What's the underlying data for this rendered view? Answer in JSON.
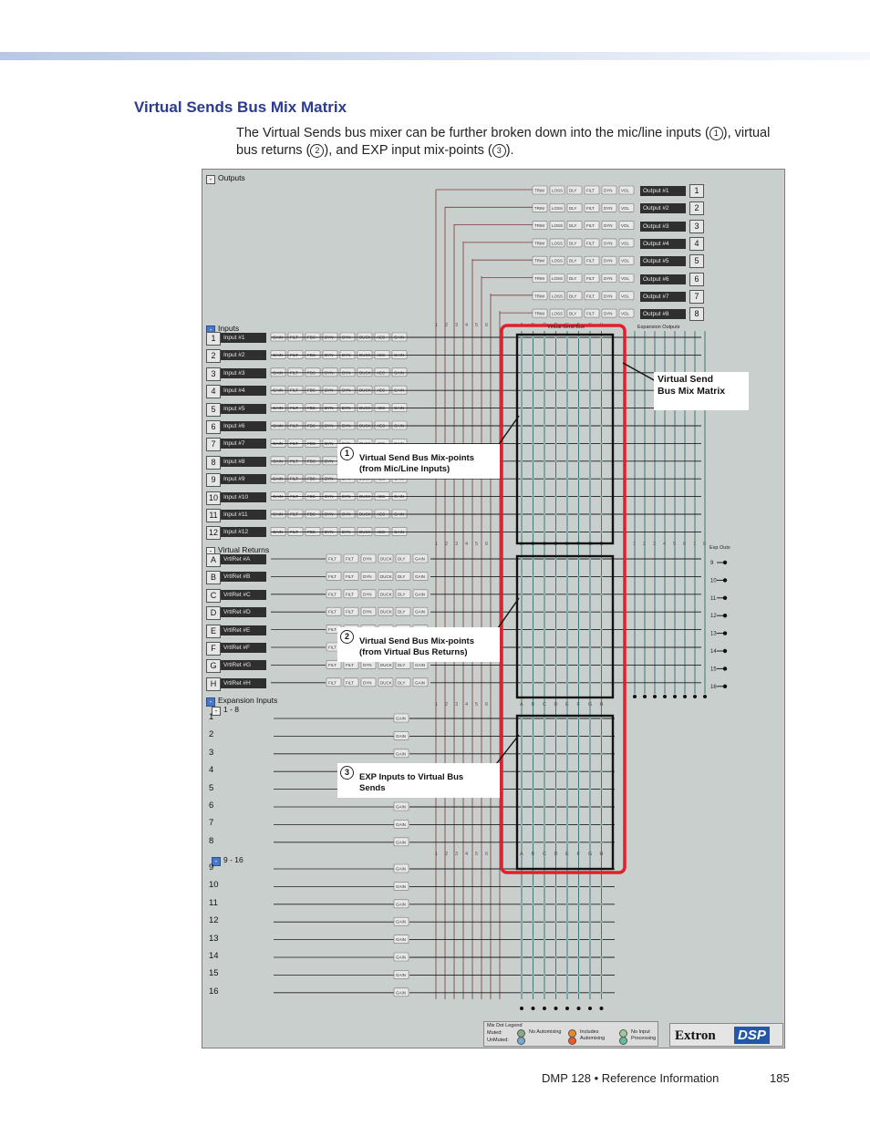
{
  "header": {
    "title": "Virtual Sends Bus Mix Matrix"
  },
  "intro": {
    "part1": "The Virtual Sends bus mixer can be further broken down into the mic/line inputs (",
    "num1": "1",
    "part2": "), virtual bus returns (",
    "num2": "2",
    "part3": "), and EXP input mix-points (",
    "num3": "3",
    "part4": ")."
  },
  "figure": {
    "outputs_label": "Outputs",
    "outputs": [
      {
        "num": "1",
        "name": "Output #1"
      },
      {
        "num": "2",
        "name": "Output #2"
      },
      {
        "num": "3",
        "name": "Output #3"
      },
      {
        "num": "4",
        "name": "Output #4"
      },
      {
        "num": "5",
        "name": "Output #5"
      },
      {
        "num": "6",
        "name": "Output #6"
      },
      {
        "num": "7",
        "name": "Output #7"
      },
      {
        "num": "8",
        "name": "Output #8"
      }
    ],
    "output_blocks": [
      "TRIM",
      "LOSS",
      "DLY",
      "FILT",
      "DYN",
      "VOL"
    ],
    "inputs_label": "Inputs",
    "inputs": [
      {
        "num": "1",
        "name": "Input #1"
      },
      {
        "num": "2",
        "name": "Input #2"
      },
      {
        "num": "3",
        "name": "Input #3"
      },
      {
        "num": "4",
        "name": "Input #4"
      },
      {
        "num": "5",
        "name": "Input #5"
      },
      {
        "num": "6",
        "name": "Input #6"
      },
      {
        "num": "7",
        "name": "Input #7"
      },
      {
        "num": "8",
        "name": "Input #8"
      },
      {
        "num": "9",
        "name": "Input #9"
      },
      {
        "num": "10",
        "name": "Input #10"
      },
      {
        "num": "11",
        "name": "Input #11"
      },
      {
        "num": "12",
        "name": "Input #12"
      }
    ],
    "input_blocks": [
      "GAIN",
      "FILT",
      "FBS",
      "DYN",
      "DYN",
      "DUCK",
      "AEC",
      "GAIN"
    ],
    "virtual_returns_label": "Virtual Returns",
    "virtual_returns": [
      {
        "num": "A",
        "name": "VrtlRet #A"
      },
      {
        "num": "B",
        "name": "VrtlRet #B"
      },
      {
        "num": "C",
        "name": "VrtlRet #C"
      },
      {
        "num": "D",
        "name": "VrtlRet #D"
      },
      {
        "num": "E",
        "name": "VrtlRet #E"
      },
      {
        "num": "F",
        "name": "VrtlRet #F"
      },
      {
        "num": "G",
        "name": "VrtlRet #G"
      },
      {
        "num": "H",
        "name": "VrtlRet #H"
      }
    ],
    "return_blocks": [
      "FILT",
      "FILT",
      "DYN",
      "DUCK",
      "DLY",
      "GAIN"
    ],
    "expansion_label": "Expansion Inputs",
    "exp_group1_label": "1 - 8",
    "exp_group2_label": "9 - 16",
    "exp_inputs_1": [
      "1",
      "2",
      "3",
      "4",
      "5",
      "6",
      "7",
      "8"
    ],
    "exp_inputs_2": [
      "9",
      "10",
      "11",
      "12",
      "13",
      "14",
      "15",
      "16"
    ],
    "exp_block": "GAIN",
    "virtual_send_bus_label": "Virtual Send Bus",
    "expansion_outputs_label": "Expansion Outputs",
    "exp_outs_label": "Exp Outs",
    "exp_outs": [
      "9",
      "10",
      "11",
      "12",
      "13",
      "14",
      "15",
      "16"
    ],
    "col_numbers": [
      "1",
      "2",
      "3",
      "4",
      "5",
      "6",
      "7",
      "8"
    ],
    "col_letters": [
      "A",
      "B",
      "C",
      "D",
      "E",
      "F",
      "G",
      "H"
    ],
    "legend": {
      "title": "Mix Dot Legend",
      "muted": "Muted:",
      "unmuted": "UnMuted:",
      "no_automixing": "No Automixing",
      "includes_automixing": "Includes Automixing",
      "no_input_processing": "No Input Processing"
    },
    "logo": {
      "brand": "Extron",
      "product": "DSP"
    }
  },
  "callouts": {
    "matrix_line1": "Virtual Send",
    "matrix_line2": "Bus Mix Matrix",
    "c1_num": "1",
    "c1_line1": "Virtual Send Bus Mix-points",
    "c1_line2": "(from Mic/Line Inputs)",
    "c2_num": "2",
    "c2_line1": "Virtual Send Bus Mix-points",
    "c2_line2": "(from Virtual Bus Returns)",
    "c3_num": "3",
    "c3_line1": "EXP Inputs to Virtual Bus",
    "c3_line2": "Sends"
  },
  "footer": {
    "doc": "DMP 128 • Reference Information",
    "page": "185"
  },
  "colors": {
    "heading": "#2b3b8f",
    "highlight": "#e0202a",
    "figure_bg": "#c9cfcd"
  }
}
